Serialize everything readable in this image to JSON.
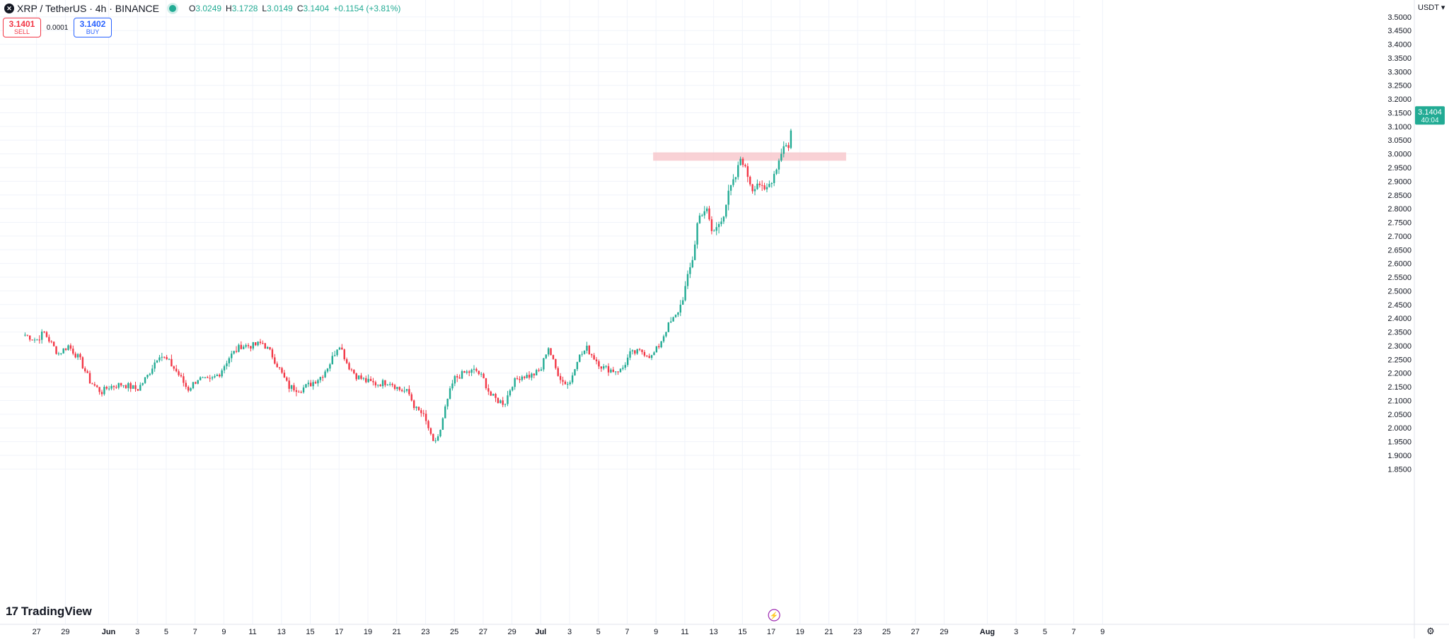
{
  "header": {
    "title": "XRP / TetherUS · 4h · BINANCE",
    "open_label": "O",
    "open": "3.0249",
    "high_label": "H",
    "high": "3.1728",
    "low_label": "L",
    "low": "3.0149",
    "close_label": "C",
    "close": "3.1404",
    "change": "+0.1154 (+3.81%)"
  },
  "trade": {
    "sell_price": "3.1401",
    "sell_label": "SELL",
    "spread": "0.0001",
    "buy_price": "3.1402",
    "buy_label": "BUY"
  },
  "currency_selector": "USDT",
  "logo_text": "TradingView",
  "colors": {
    "up": "#22ab94",
    "down": "#f23645",
    "zone": "#f7c6ca",
    "grid": "#f0f3fa",
    "badge": "#22ab94"
  },
  "chart_data": {
    "type": "candlestick",
    "y_ticks": [
      "3.5000",
      "3.4500",
      "3.4000",
      "3.3500",
      "3.3000",
      "3.2500",
      "3.2000",
      "3.1500",
      "3.1000",
      "3.0500",
      "3.0000",
      "2.9500",
      "2.9000",
      "2.8500",
      "2.8000",
      "2.7500",
      "2.7000",
      "2.6500",
      "2.6000",
      "2.5500",
      "2.5000",
      "2.4500",
      "2.4000",
      "2.3500",
      "2.3000",
      "2.2500",
      "2.2000",
      "2.1500",
      "2.1000",
      "2.0500",
      "2.0000",
      "1.9500",
      "1.9000",
      "1.8500"
    ],
    "x_ticks": [
      "27",
      "29",
      "Jun",
      "3",
      "5",
      "7",
      "9",
      "11",
      "13",
      "15",
      "17",
      "19",
      "21",
      "23",
      "25",
      "27",
      "29",
      "Jul",
      "3",
      "5",
      "7",
      "9",
      "11",
      "13",
      "15",
      "17",
      "19",
      "21",
      "23",
      "25",
      "27",
      "29",
      "Aug",
      "3",
      "5",
      "7",
      "9"
    ],
    "x_tick_days": [
      -5,
      -3,
      0,
      2,
      4,
      6,
      8,
      10,
      12,
      14,
      16,
      18,
      20,
      22,
      24,
      26,
      28,
      30,
      32,
      34,
      36,
      38,
      40,
      42,
      44,
      46,
      48,
      50,
      52,
      54,
      56,
      58,
      61,
      63,
      65,
      67,
      69
    ],
    "ylim": [
      1.82,
      3.515
    ],
    "last_price": "3.1404",
    "countdown": "40:04",
    "resistance_zone": {
      "low": 2.975,
      "high": 2.99,
      "start_day": 37.8,
      "end_day": 51.2
    },
    "anchors": [
      [
        -5.8,
        2.34
      ],
      [
        -5,
        2.32
      ],
      [
        -4.5,
        2.35
      ],
      [
        -4,
        2.31
      ],
      [
        -3.5,
        2.27
      ],
      [
        -2.8,
        2.3
      ],
      [
        -2,
        2.25
      ],
      [
        -1.3,
        2.17
      ],
      [
        -0.5,
        2.13
      ],
      [
        0,
        2.15
      ],
      [
        1,
        2.16
      ],
      [
        2,
        2.14
      ],
      [
        2.7,
        2.19
      ],
      [
        3.5,
        2.27
      ],
      [
        4.2,
        2.24
      ],
      [
        4.8,
        2.2
      ],
      [
        5.5,
        2.14
      ],
      [
        6.2,
        2.18
      ],
      [
        7,
        2.17
      ],
      [
        7.7,
        2.2
      ],
      [
        8.4,
        2.26
      ],
      [
        9.2,
        2.3
      ],
      [
        10,
        2.3
      ],
      [
        10.7,
        2.31
      ],
      [
        11.3,
        2.27
      ],
      [
        12,
        2.2
      ],
      [
        12.5,
        2.15
      ],
      [
        13.3,
        2.14
      ],
      [
        14,
        2.16
      ],
      [
        14.8,
        2.19
      ],
      [
        15.4,
        2.24
      ],
      [
        16,
        2.31
      ],
      [
        16.6,
        2.23
      ],
      [
        17.2,
        2.19
      ],
      [
        17.9,
        2.17
      ],
      [
        18.6,
        2.16
      ],
      [
        19.5,
        2.17
      ],
      [
        20.2,
        2.14
      ],
      [
        20.8,
        2.13
      ],
      [
        21.3,
        2.07
      ],
      [
        21.8,
        2.05
      ],
      [
        22.2,
        2.0
      ],
      [
        22.5,
        1.94
      ],
      [
        23,
        1.98
      ],
      [
        23.5,
        2.1
      ],
      [
        24,
        2.18
      ],
      [
        24.7,
        2.2
      ],
      [
        25.5,
        2.21
      ],
      [
        26,
        2.18
      ],
      [
        26.5,
        2.12
      ],
      [
        27,
        2.1
      ],
      [
        27.5,
        2.09
      ],
      [
        28,
        2.16
      ],
      [
        28.6,
        2.19
      ],
      [
        29.3,
        2.19
      ],
      [
        30,
        2.21
      ],
      [
        30.5,
        2.3
      ],
      [
        31,
        2.22
      ],
      [
        31.5,
        2.17
      ],
      [
        32,
        2.16
      ],
      [
        32.5,
        2.25
      ],
      [
        33.2,
        2.29
      ],
      [
        33.8,
        2.25
      ],
      [
        34.3,
        2.22
      ],
      [
        35,
        2.21
      ],
      [
        35.6,
        2.21
      ],
      [
        36.2,
        2.27
      ],
      [
        37,
        2.28
      ],
      [
        37.7,
        2.26
      ],
      [
        38.2,
        2.3
      ],
      [
        38.8,
        2.37
      ],
      [
        39.4,
        2.41
      ],
      [
        39.8,
        2.46
      ],
      [
        40.2,
        2.55
      ],
      [
        40.6,
        2.63
      ],
      [
        40.9,
        2.76
      ],
      [
        41.1,
        2.78
      ],
      [
        41.5,
        2.8
      ],
      [
        41.9,
        2.71
      ],
      [
        42.2,
        2.73
      ],
      [
        42.7,
        2.78
      ],
      [
        43.1,
        2.87
      ],
      [
        43.5,
        2.91
      ],
      [
        43.9,
        2.99
      ],
      [
        44.3,
        2.93
      ],
      [
        44.7,
        2.87
      ],
      [
        45.1,
        2.9
      ],
      [
        45.5,
        2.86
      ],
      [
        46,
        2.9
      ],
      [
        46.5,
        2.97
      ],
      [
        46.9,
        3.04
      ],
      [
        47.2,
        3.02
      ],
      [
        47.5,
        3.15
      ]
    ]
  }
}
